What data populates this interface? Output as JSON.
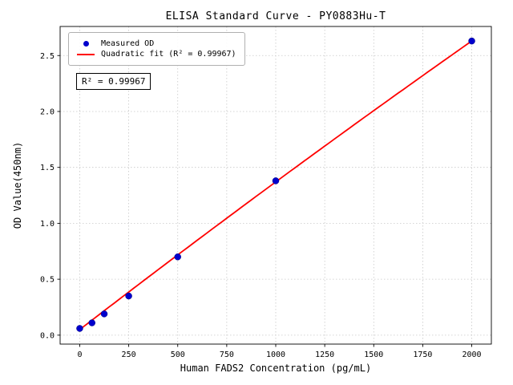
{
  "title": "ELISA Standard Curve - PY0883Hu-T",
  "annotation": "R² = 0.99967",
  "chart_data": {
    "type": "scatter",
    "title": "ELISA Standard Curve - PY0883Hu-T",
    "xlabel": "Human FADS2 Concentration (pg/mL)",
    "ylabel": "OD Value(450nm)",
    "xlim": [
      -100,
      2100
    ],
    "ylim": [
      -0.08,
      2.76
    ],
    "xticks": [
      0,
      250,
      500,
      750,
      1000,
      1250,
      1500,
      1750,
      2000
    ],
    "yticks": [
      0.0,
      0.5,
      1.0,
      1.5,
      2.0,
      2.5
    ],
    "grid": true,
    "grid_style": "dotted",
    "legend_position": "upper-left",
    "annotation": "R² = 0.99967",
    "series": [
      {
        "name": "Measured OD",
        "kind": "scatter",
        "color": "#0000cd",
        "x": [
          0,
          62.5,
          125,
          250,
          500,
          1000,
          2000
        ],
        "y": [
          0.06,
          0.11,
          0.19,
          0.35,
          0.7,
          1.38,
          2.63
        ]
      },
      {
        "name": "Quadratic fit (R² = 0.99967)",
        "kind": "line",
        "color": "#ff0000",
        "fit_coefficients": {
          "a": -3e-08,
          "b": 0.00135,
          "c": 0.05
        },
        "x_range": [
          0,
          2000
        ],
        "r_squared": 0.99967
      }
    ],
    "colors": {
      "points": "#0000cd",
      "fit_line": "#ff0000",
      "grid": "#c8c8c8",
      "axes": "#000000"
    }
  }
}
